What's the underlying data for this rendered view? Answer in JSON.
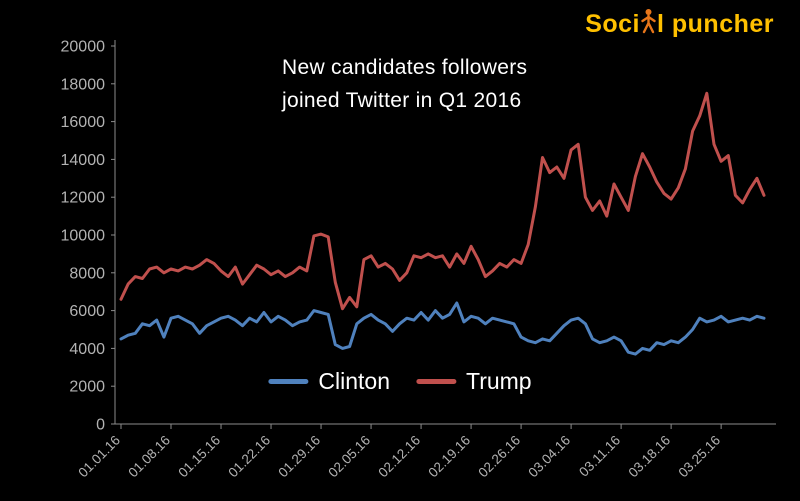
{
  "logo": {
    "prefix": "Soci",
    "suffix": "l puncher",
    "text_color": "#ffc000",
    "figure_color": "#e8761a"
  },
  "chart": {
    "title_line1": "New candidates followers",
    "title_line2": "joined Twitter in Q1 2016"
  },
  "chart_data": {
    "type": "line",
    "title": "New candidates followers joined Twitter in Q1 2016",
    "xlabel": "",
    "ylabel": "",
    "ylim": [
      0,
      20000
    ],
    "yticks": [
      0,
      2000,
      4000,
      6000,
      8000,
      10000,
      12000,
      14000,
      16000,
      18000,
      20000
    ],
    "x_tick_labels": [
      "01.01.16",
      "01.08.16",
      "01.15.16",
      "01.22.16",
      "01.29.16",
      "02.05.16",
      "02.12.16",
      "02.19.16",
      "02.26.16",
      "03.04.16",
      "03.11.16",
      "03.18.16",
      "03.25.16"
    ],
    "tick_interval_days": 7,
    "x_is_daily": true,
    "grid": false,
    "legend_position": "bottom-center",
    "background": "#000000",
    "axis_color": "#8c8c8c",
    "label_color": "#b3b3b3",
    "series": [
      {
        "name": "Clinton",
        "color": "#4f81bd",
        "values": [
          4500,
          4700,
          4800,
          5300,
          5200,
          5500,
          4600,
          5600,
          5700,
          5500,
          5300,
          4800,
          5200,
          5400,
          5600,
          5700,
          5500,
          5200,
          5600,
          5400,
          5900,
          5400,
          5700,
          5500,
          5200,
          5400,
          5500,
          6000,
          5900,
          5800,
          4200,
          4000,
          4100,
          5300,
          5600,
          5800,
          5500,
          5300,
          4900,
          5300,
          5600,
          5500,
          5900,
          5500,
          6000,
          5600,
          5800,
          6400,
          5400,
          5700,
          5600,
          5300,
          5600,
          5500,
          5400,
          5300,
          4600,
          4400,
          4300,
          4500,
          4400,
          4800,
          5200,
          5500,
          5600,
          5300,
          4500,
          4300,
          4400,
          4600,
          4400,
          3800,
          3700,
          4000,
          3900,
          4300,
          4200,
          4400,
          4300,
          4600,
          5000,
          5600,
          5400,
          5500,
          5700,
          5400,
          5500,
          5600,
          5500,
          5700,
          5600
        ]
      },
      {
        "name": "Trump",
        "color": "#c0504d",
        "values": [
          6600,
          7400,
          7800,
          7700,
          8200,
          8300,
          8000,
          8200,
          8100,
          8300,
          8200,
          8400,
          8700,
          8500,
          8100,
          7800,
          8300,
          7400,
          7900,
          8400,
          8200,
          7900,
          8100,
          7800,
          8000,
          8300,
          8100,
          9950,
          10050,
          9900,
          7500,
          6100,
          6700,
          6200,
          8700,
          8900,
          8300,
          8500,
          8200,
          7600,
          8000,
          8900,
          8800,
          9000,
          8800,
          8900,
          8300,
          9000,
          8500,
          9400,
          8700,
          7800,
          8100,
          8500,
          8300,
          8700,
          8500,
          9500,
          11500,
          14100,
          13300,
          13600,
          13000,
          14500,
          14800,
          12000,
          11300,
          11800,
          11000,
          12700,
          12000,
          11300,
          13100,
          14300,
          13600,
          12800,
          12200,
          11900,
          12500,
          13500,
          15500,
          16300,
          17500,
          14800,
          13900,
          14200,
          12100,
          11700,
          12400,
          13000,
          12100
        ]
      }
    ]
  }
}
